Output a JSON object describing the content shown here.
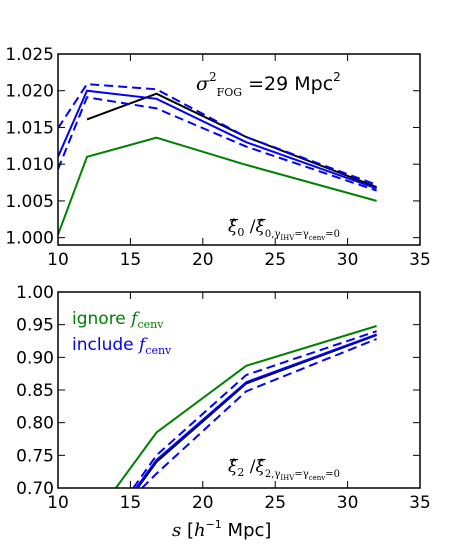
{
  "chart_data": [
    {
      "type": "line",
      "panel": "top",
      "xlim": [
        10,
        35
      ],
      "ylim": [
        0.999,
        1.025
      ],
      "xticks": [
        "10",
        "15",
        "20",
        "25",
        "30",
        "35"
      ],
      "yticks": [
        "1.000",
        "1.005",
        "1.010",
        "1.015",
        "1.020",
        "1.025"
      ],
      "ytick_values": [
        1.0,
        1.005,
        1.01,
        1.015,
        1.02,
        1.025
      ],
      "xtick_values": [
        10,
        15,
        20,
        25,
        30,
        35
      ],
      "annotation_top": "σ²FOG = 29 Mpc²",
      "annotation_bottom": "ξ̂0 / ξ̂0,γIHV=γcenv=0",
      "series": [
        {
          "color": "#000000",
          "dash": "solid",
          "x": [
            12,
            16.8,
            23,
            32
          ],
          "y": [
            1.0161,
            1.0196,
            1.0137,
            1.0069
          ]
        },
        {
          "color": "#008000",
          "dash": "solid",
          "x": [
            10,
            12,
            16.8,
            23,
            32
          ],
          "y": [
            1.0004,
            1.011,
            1.0136,
            1.0099,
            1.005
          ]
        },
        {
          "color": "#0000ff",
          "dash": "solid",
          "x": [
            10,
            12,
            16.8,
            23,
            32
          ],
          "y": [
            1.011,
            1.02,
            1.0189,
            1.013,
            1.0067
          ]
        },
        {
          "color": "#0000ff",
          "dash": "dashed",
          "x": [
            10,
            12,
            16.8,
            23,
            32
          ],
          "y": [
            1.0149,
            1.0209,
            1.0202,
            1.0137,
            1.0072
          ]
        },
        {
          "color": "#0000ff",
          "dash": "dashed",
          "x": [
            10,
            12,
            16.8,
            23,
            32
          ],
          "y": [
            1.0093,
            1.0191,
            1.0176,
            1.0124,
            1.0064
          ]
        }
      ]
    },
    {
      "type": "line",
      "panel": "bottom",
      "xlim": [
        10,
        35
      ],
      "ylim": [
        0.7,
        1.0
      ],
      "xticks": [
        "10",
        "15",
        "20",
        "25",
        "30",
        "35"
      ],
      "yticks": [
        "0.70",
        "0.75",
        "0.80",
        "0.85",
        "0.90",
        "0.95",
        "1.00"
      ],
      "ytick_values": [
        0.7,
        0.75,
        0.8,
        0.85,
        0.9,
        0.95,
        1.0
      ],
      "xtick_values": [
        10,
        15,
        20,
        25,
        30,
        35
      ],
      "xlabel": "s [h⁻¹ Mpc]",
      "annotation_bottom": "ξ̂2 / ξ̂2,γIHV=γcenv=0",
      "legend": [
        {
          "label": "ignore fcenv",
          "color": "#008000"
        },
        {
          "label": "include fcenv",
          "color": "#0000ff"
        }
      ],
      "series": [
        {
          "color": "#008000",
          "dash": "solid",
          "x": [
            14,
            16.8,
            23,
            32
          ],
          "y": [
            0.7,
            0.785,
            0.887,
            0.948
          ]
        },
        {
          "color": "#000000",
          "dash": "solid",
          "x": [
            15.5,
            16.8,
            23,
            32
          ],
          "y": [
            0.7,
            0.74,
            0.86,
            0.934
          ]
        },
        {
          "color": "#0000ff",
          "dash": "solid",
          "x": [
            15.4,
            16.8,
            23,
            32
          ],
          "y": [
            0.7,
            0.743,
            0.862,
            0.935
          ]
        },
        {
          "color": "#0000ff",
          "dash": "dashed",
          "x": [
            15.2,
            16.8,
            23,
            32
          ],
          "y": [
            0.7,
            0.75,
            0.873,
            0.94
          ]
        },
        {
          "color": "#0000ff",
          "dash": "dashed",
          "x": [
            15.8,
            16.8,
            23,
            32
          ],
          "y": [
            0.7,
            0.722,
            0.848,
            0.928
          ]
        }
      ]
    }
  ]
}
